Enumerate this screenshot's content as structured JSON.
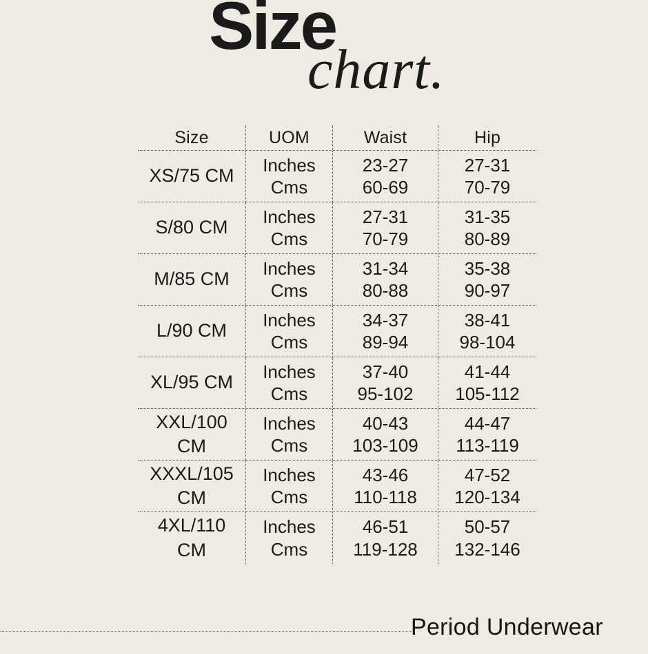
{
  "colors": {
    "background": "#f0ebe2",
    "ink": "#1b1b1b",
    "grid_line": "#55514a"
  },
  "title": {
    "main": "Size",
    "script": "chart."
  },
  "table": {
    "headers": [
      "Size",
      "UOM",
      "Waist",
      "Hip"
    ],
    "rows": [
      {
        "size": "XS/75 CM",
        "uom": [
          "Inches",
          "Cms"
        ],
        "waist": [
          "23-27",
          "60-69"
        ],
        "hip": [
          "27-31",
          "70-79"
        ]
      },
      {
        "size": "S/80 CM",
        "uom": [
          "Inches",
          "Cms"
        ],
        "waist": [
          "27-31",
          "70-79"
        ],
        "hip": [
          "31-35",
          "80-89"
        ]
      },
      {
        "size": "M/85 CM",
        "uom": [
          "Inches",
          "Cms"
        ],
        "waist": [
          "31-34",
          "80-88"
        ],
        "hip": [
          "35-38",
          "90-97"
        ]
      },
      {
        "size": "L/90 CM",
        "uom": [
          "Inches",
          "Cms"
        ],
        "waist": [
          "34-37",
          "89-94"
        ],
        "hip": [
          "38-41",
          "98-104"
        ]
      },
      {
        "size": "XL/95 CM",
        "uom": [
          "Inches",
          "Cms"
        ],
        "waist": [
          "37-40",
          "95-102"
        ],
        "hip": [
          "41-44",
          "105-112"
        ]
      },
      {
        "size": "XXL/100 CM",
        "uom": [
          "Inches",
          "Cms"
        ],
        "waist": [
          "40-43",
          "103-109"
        ],
        "hip": [
          "44-47",
          "113-119"
        ]
      },
      {
        "size": "XXXL/105 CM",
        "uom": [
          "Inches",
          "Cms"
        ],
        "waist": [
          "43-46",
          "110-118"
        ],
        "hip": [
          "47-52",
          "120-134"
        ]
      },
      {
        "size": "4XL/110 CM",
        "uom": [
          "Inches",
          "Cms"
        ],
        "waist": [
          "46-51",
          "119-128"
        ],
        "hip": [
          "50-57",
          "132-146"
        ]
      }
    ]
  },
  "footer": {
    "label": "Period Underwear"
  }
}
